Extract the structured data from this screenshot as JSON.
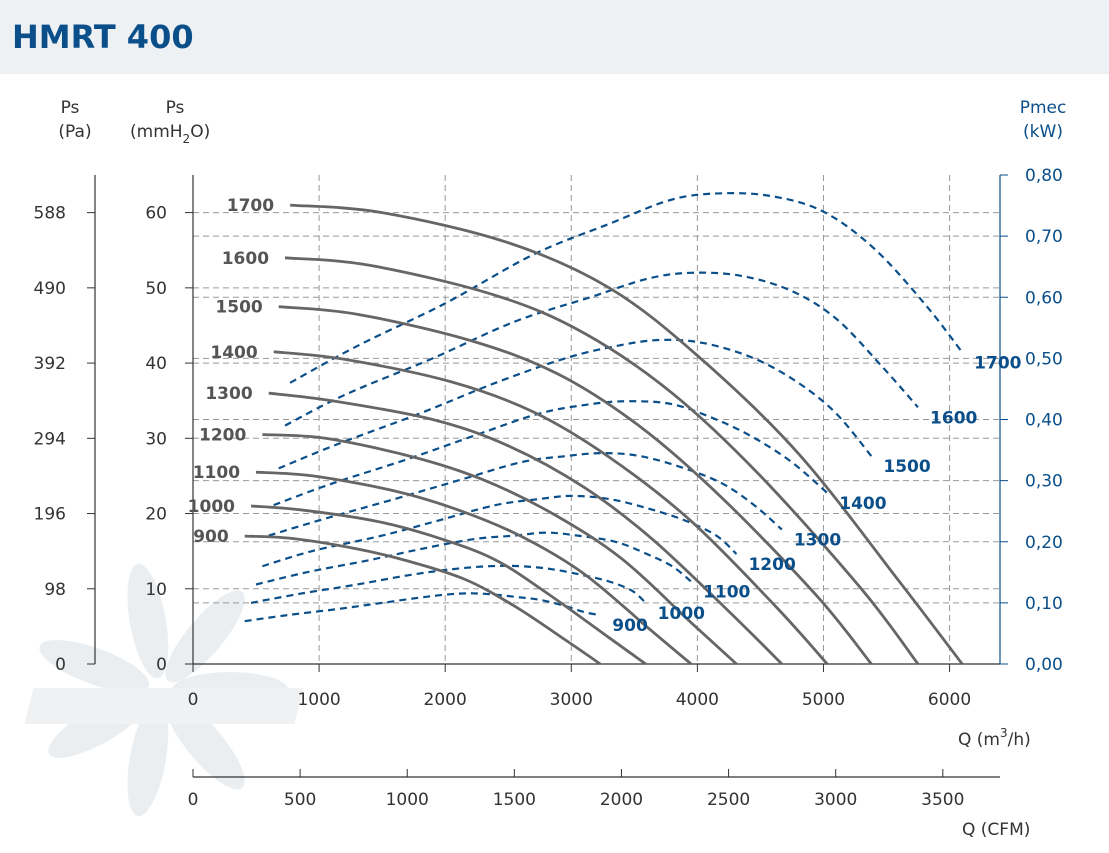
{
  "header": {
    "title": "HMRT 400"
  },
  "axes": {
    "pa_label_1": "Ps",
    "pa_label_2": "(Pa)",
    "mm_label_1": "Ps",
    "mm_label_2": "(mmH",
    "mm_label_sub": "2",
    "mm_label_3": "O)",
    "kw_label_1": "Pmec",
    "kw_label_2": "(kW)",
    "q_label": "Q (m",
    "q_label_sup": "3",
    "q_label_end": "/h)",
    "cfm_label": "Q (CFM)"
  },
  "chart_data": {
    "type": "line",
    "xlabel": "Q (m3/h)",
    "xlim": [
      0,
      6400
    ],
    "x_ticks": [
      0,
      1000,
      2000,
      3000,
      4000,
      5000,
      6000
    ],
    "cfm_ticks": [
      0,
      500,
      1000,
      1500,
      2000,
      2500,
      3000,
      3500
    ],
    "ylim_mm": [
      0,
      65
    ],
    "mm_ticks": [
      0,
      10,
      20,
      30,
      40,
      50,
      60
    ],
    "pa_ticks": [
      0,
      98,
      196,
      294,
      392,
      490,
      588
    ],
    "ylim_kw": [
      0,
      0.8
    ],
    "kw_ticks": [
      "0,00",
      "0,10",
      "0,20",
      "0,30",
      "0,40",
      "0,50",
      "0,60",
      "0,70",
      "0,80"
    ],
    "grid": true,
    "pressure_series": [
      {
        "name": "1700",
        "x": [
          770,
          1500,
          2500,
          3300,
          4000,
          4800,
          5600,
          6100
        ],
        "y": [
          61,
          60,
          56,
          50,
          41,
          28,
          11,
          0
        ]
      },
      {
        "name": "1600",
        "x": [
          730,
          1400,
          2400,
          3100,
          3800,
          4500,
          5300,
          5750
        ],
        "y": [
          54,
          53,
          49,
          44,
          36,
          25,
          10,
          0
        ]
      },
      {
        "name": "1500",
        "x": [
          680,
          1300,
          2200,
          2900,
          3550,
          4200,
          4950,
          5380
        ],
        "y": [
          47.5,
          46.5,
          43,
          38.5,
          31.5,
          22,
          9,
          0
        ]
      },
      {
        "name": "1400",
        "x": [
          640,
          1200,
          2050,
          2700,
          3300,
          3950,
          4630,
          5030
        ],
        "y": [
          41.5,
          40.5,
          37.5,
          33.5,
          27.5,
          19,
          7.5,
          0
        ]
      },
      {
        "name": "1300",
        "x": [
          600,
          1100,
          1900,
          2500,
          3100,
          3650,
          4280,
          4670
        ],
        "y": [
          36,
          35,
          32.5,
          29,
          23.5,
          16.5,
          6.5,
          0
        ]
      },
      {
        "name": "1200",
        "x": [
          550,
          1050,
          1750,
          2300,
          2850,
          3400,
          3950,
          4310
        ],
        "y": [
          30.5,
          30,
          27.5,
          24.5,
          20,
          14,
          5.5,
          0
        ]
      },
      {
        "name": "1100",
        "x": [
          500,
          950,
          1600,
          2100,
          2600,
          3100,
          3630,
          3950
        ],
        "y": [
          25.5,
          25,
          23,
          20.5,
          17,
          12,
          4.5,
          0
        ]
      },
      {
        "name": "1000",
        "x": [
          460,
          850,
          1450,
          1900,
          2380,
          2800,
          3300,
          3590
        ],
        "y": [
          21,
          20.5,
          19,
          17,
          14,
          9.5,
          3.5,
          0
        ]
      },
      {
        "name": "900",
        "x": [
          410,
          780,
          1300,
          1700,
          2150,
          2550,
          2970,
          3230
        ],
        "y": [
          17,
          16.7,
          15.3,
          13.7,
          11.3,
          7.7,
          3,
          0
        ]
      }
    ],
    "power_series": [
      {
        "name": "1700",
        "x": [
          770,
          1300,
          2000,
          2700,
          3300,
          3800,
          4200,
          4600,
          5000,
          5400,
          5800,
          6100
        ],
        "y": [
          0.46,
          0.52,
          0.59,
          0.67,
          0.72,
          0.76,
          0.77,
          0.765,
          0.74,
          0.68,
          0.59,
          0.51
        ]
      },
      {
        "name": "1600",
        "x": [
          730,
          1200,
          1900,
          2550,
          3150,
          3600,
          3950,
          4350,
          4750,
          5100,
          5450,
          5750
        ],
        "y": [
          0.39,
          0.44,
          0.5,
          0.56,
          0.6,
          0.63,
          0.64,
          0.635,
          0.61,
          0.565,
          0.49,
          0.42
        ]
      },
      {
        "name": "1500",
        "x": [
          680,
          1150,
          1800,
          2400,
          2950,
          3350,
          3700,
          4050,
          4450,
          4800,
          5100,
          5380
        ],
        "y": [
          0.32,
          0.36,
          0.41,
          0.46,
          0.5,
          0.52,
          0.53,
          0.525,
          0.5,
          0.46,
          0.41,
          0.34
        ]
      },
      {
        "name": "1400",
        "x": [
          640,
          1100,
          1700,
          2250,
          2750,
          3150,
          3450,
          3800,
          4150,
          4450,
          4750,
          5030
        ],
        "y": [
          0.26,
          0.295,
          0.335,
          0.375,
          0.41,
          0.425,
          0.43,
          0.425,
          0.4,
          0.37,
          0.33,
          0.28
        ]
      },
      {
        "name": "1300",
        "x": [
          600,
          1000,
          1600,
          2100,
          2600,
          2950,
          3250,
          3550,
          3900,
          4200,
          4450,
          4670
        ],
        "y": [
          0.21,
          0.235,
          0.27,
          0.3,
          0.33,
          0.34,
          0.345,
          0.34,
          0.32,
          0.295,
          0.26,
          0.22
        ]
      },
      {
        "name": "1200",
        "x": [
          550,
          950,
          1500,
          1950,
          2400,
          2750,
          3000,
          3300,
          3600,
          3900,
          4150,
          4310
        ],
        "y": [
          0.16,
          0.185,
          0.21,
          0.235,
          0.26,
          0.27,
          0.275,
          0.27,
          0.255,
          0.235,
          0.21,
          0.18
        ]
      },
      {
        "name": "1100",
        "x": [
          500,
          900,
          1400,
          1850,
          2250,
          2550,
          2800,
          3050,
          3350,
          3600,
          3800,
          3950
        ],
        "y": [
          0.13,
          0.15,
          0.17,
          0.19,
          0.205,
          0.21,
          0.215,
          0.21,
          0.2,
          0.18,
          0.16,
          0.135
        ]
      },
      {
        "name": "1000",
        "x": [
          460,
          850,
          1300,
          1700,
          2050,
          2350,
          2600,
          2850,
          3100,
          3300,
          3480,
          3590
        ],
        "y": [
          0.1,
          0.115,
          0.13,
          0.145,
          0.155,
          0.16,
          0.16,
          0.155,
          0.145,
          0.135,
          0.12,
          0.1
        ]
      },
      {
        "name": "900",
        "x": [
          410,
          750,
          1150,
          1500,
          1850,
          2100,
          2300,
          2550,
          2750,
          2950,
          3100,
          3230
        ],
        "y": [
          0.07,
          0.08,
          0.09,
          0.1,
          0.11,
          0.115,
          0.115,
          0.11,
          0.105,
          0.095,
          0.085,
          0.08
        ]
      }
    ]
  }
}
